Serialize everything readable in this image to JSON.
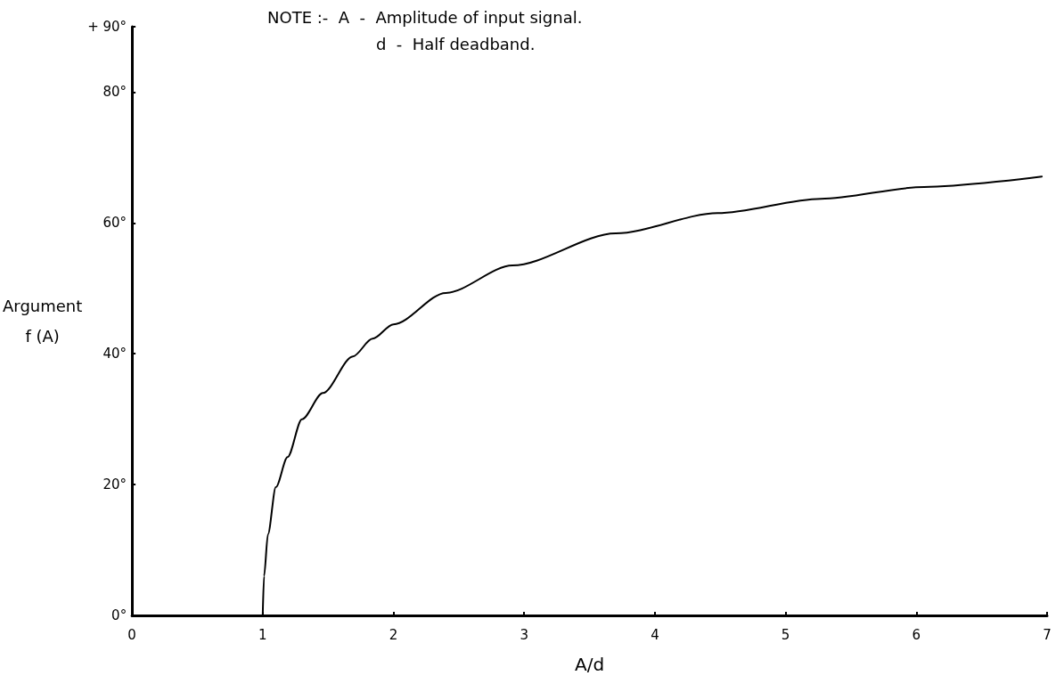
{
  "chart_data": {
    "type": "line",
    "xlabel": "A/d",
    "ylabel": "Argument\nf (A)",
    "annotations": [
      "NOTE :-  A  -  Amplitude of input signal.",
      "d  -  Half deadband."
    ],
    "x": [
      1.0,
      1.01,
      1.04,
      1.1,
      1.19,
      1.3,
      1.46,
      1.69,
      1.84,
      2.0,
      2.4,
      2.91,
      3.7,
      4.48,
      5.27,
      6.06,
      6.96
    ],
    "series": [
      {
        "color": "#000000",
        "values": [
          0,
          6,
          12.4,
          19.6,
          24.2,
          30,
          34,
          39.6,
          42.3,
          44.5,
          49.3,
          53.5,
          58.4,
          61.5,
          63.7,
          65.5,
          67.1
        ]
      }
    ],
    "xlim": [
      0,
      7
    ],
    "xticks": [
      0,
      1,
      2,
      3,
      4,
      5,
      6,
      7
    ],
    "ylim": [
      0,
      90
    ],
    "yticks": [
      {
        "value": 0,
        "label": "0°"
      },
      {
        "value": 20,
        "label": "20°"
      },
      {
        "value": 40,
        "label": "40°"
      },
      {
        "value": 60,
        "label": "60°"
      },
      {
        "value": 80,
        "label": "80°"
      },
      {
        "value": 90,
        "label": "+ 90°"
      }
    ],
    "grid": false,
    "marker": "none",
    "line_style": "solid"
  }
}
